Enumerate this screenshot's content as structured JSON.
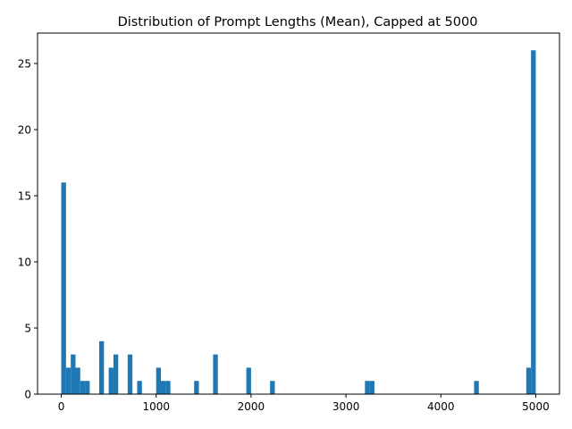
{
  "chart_data": {
    "type": "bar",
    "title": "Distribution of Prompt Lengths (Mean), Capped at 5000",
    "xlabel": "",
    "ylabel": "",
    "xlim": [
      -250,
      5250
    ],
    "ylim": [
      0,
      27.3
    ],
    "x_ticks": [
      0,
      1000,
      2000,
      3000,
      4000,
      5000
    ],
    "y_ticks": [
      0,
      5,
      10,
      15,
      20,
      25
    ],
    "grid": false,
    "bar_color": "#1f77b4",
    "bins": [
      {
        "x0": 0,
        "x1": 50,
        "value": 16
      },
      {
        "x0": 50,
        "x1": 100,
        "value": 2
      },
      {
        "x0": 100,
        "x1": 150,
        "value": 3
      },
      {
        "x0": 150,
        "x1": 200,
        "value": 2
      },
      {
        "x0": 200,
        "x1": 250,
        "value": 1
      },
      {
        "x0": 250,
        "x1": 300,
        "value": 1
      },
      {
        "x0": 400,
        "x1": 450,
        "value": 4
      },
      {
        "x0": 500,
        "x1": 550,
        "value": 2
      },
      {
        "x0": 550,
        "x1": 600,
        "value": 3
      },
      {
        "x0": 700,
        "x1": 750,
        "value": 3
      },
      {
        "x0": 800,
        "x1": 850,
        "value": 1
      },
      {
        "x0": 1000,
        "x1": 1050,
        "value": 2
      },
      {
        "x0": 1050,
        "x1": 1100,
        "value": 1
      },
      {
        "x0": 1100,
        "x1": 1150,
        "value": 1
      },
      {
        "x0": 1400,
        "x1": 1450,
        "value": 1
      },
      {
        "x0": 1600,
        "x1": 1650,
        "value": 3
      },
      {
        "x0": 1950,
        "x1": 2000,
        "value": 2
      },
      {
        "x0": 2200,
        "x1": 2250,
        "value": 1
      },
      {
        "x0": 3200,
        "x1": 3250,
        "value": 1
      },
      {
        "x0": 3250,
        "x1": 3300,
        "value": 1
      },
      {
        "x0": 4350,
        "x1": 4400,
        "value": 1
      },
      {
        "x0": 4900,
        "x1": 4950,
        "value": 2
      },
      {
        "x0": 4950,
        "x1": 5000,
        "value": 26
      }
    ]
  }
}
